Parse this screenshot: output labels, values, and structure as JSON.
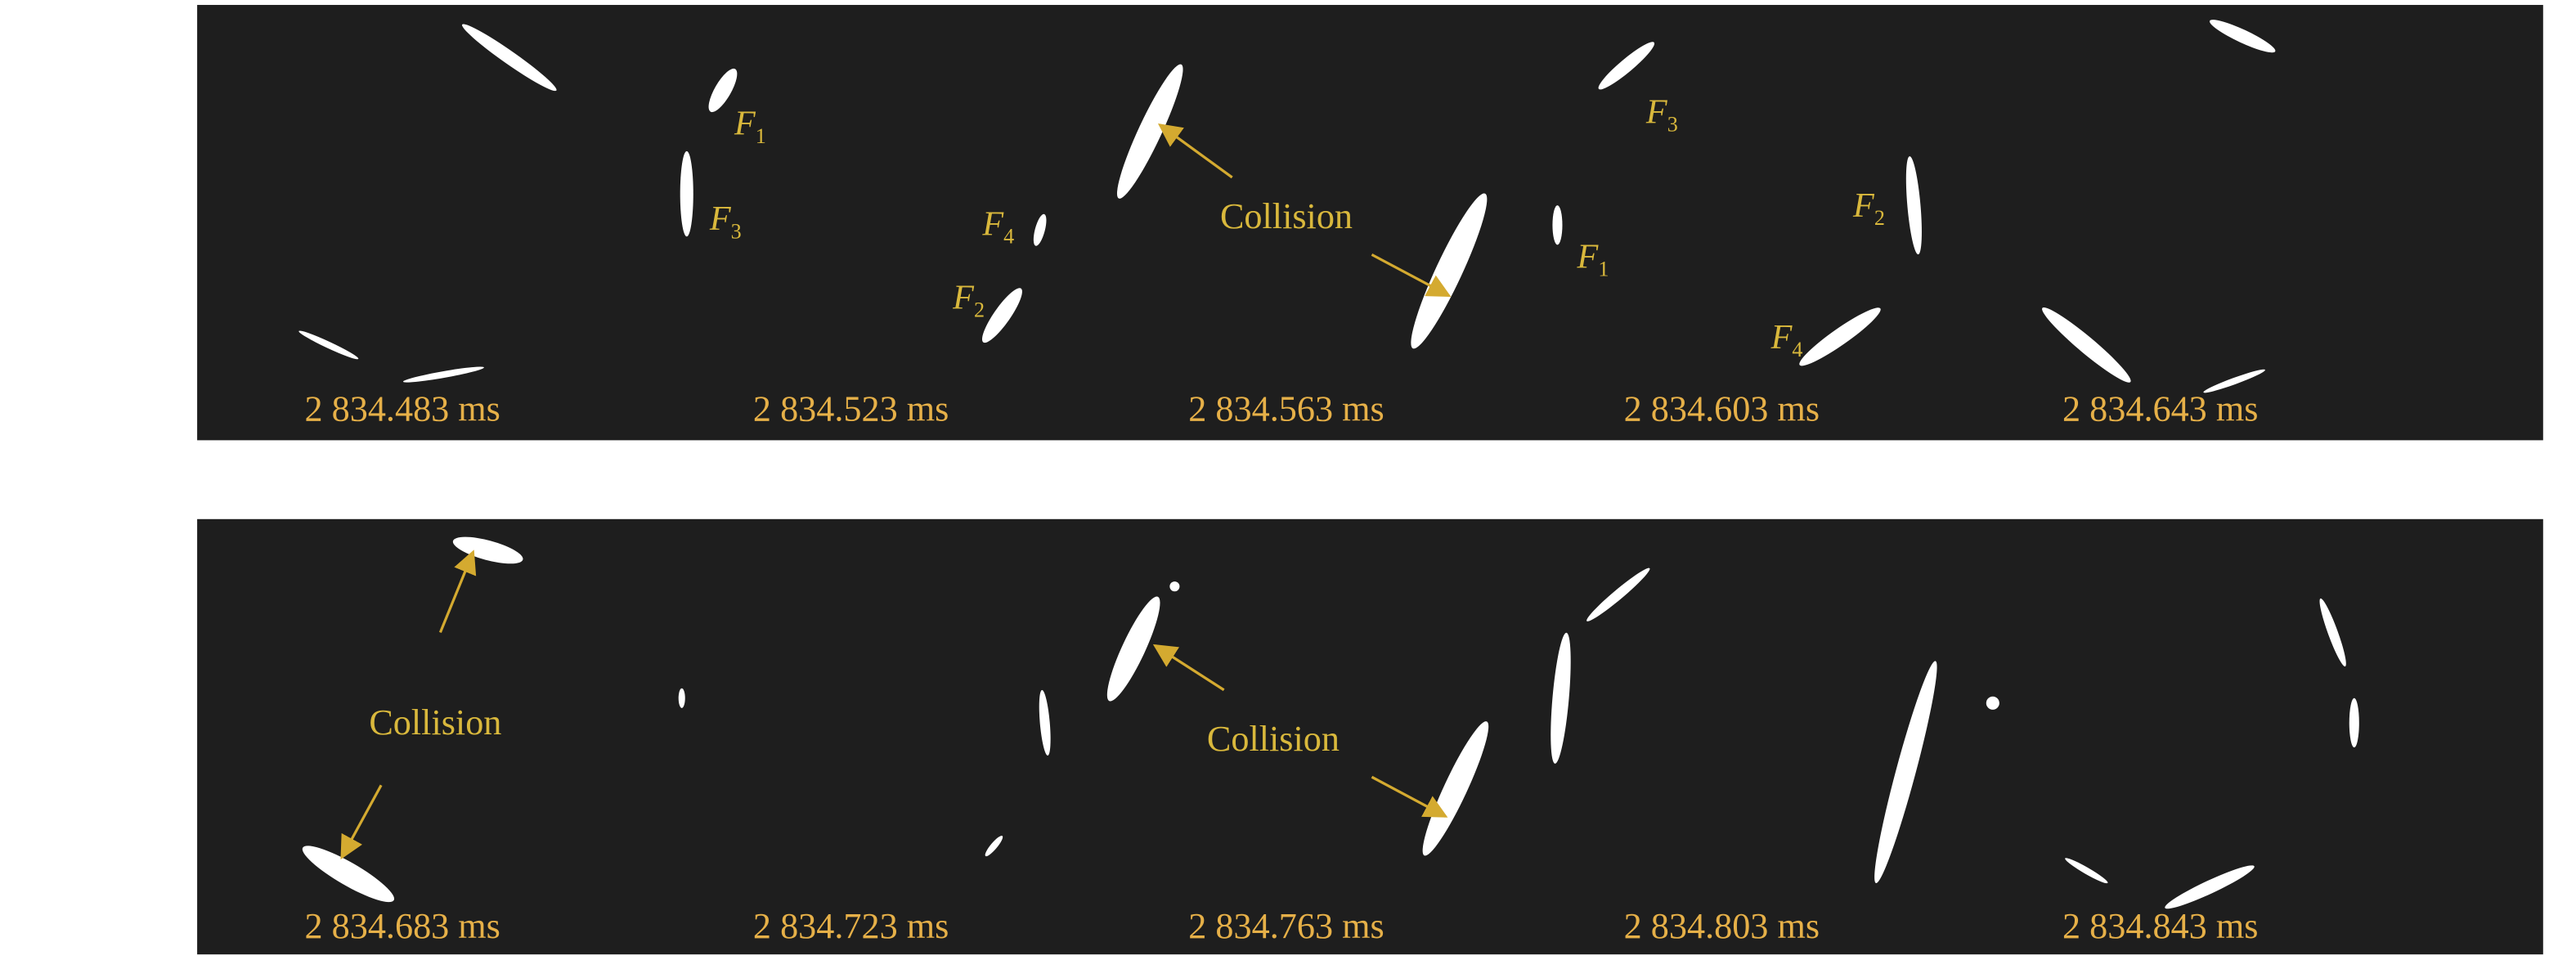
{
  "panels": [
    {
      "times": [
        "2 834.483 ms",
        "2 834.523 ms",
        "2 834.563 ms",
        "2 834.603 ms",
        "2 834.643 ms"
      ],
      "labels": [
        {
          "letter": "F",
          "sub": "1"
        },
        {
          "letter": "F",
          "sub": "3"
        },
        {
          "letter": "F",
          "sub": "4"
        },
        {
          "letter": "F",
          "sub": "2"
        },
        {
          "letter": "F",
          "sub": "3"
        },
        {
          "letter": "F",
          "sub": "2"
        },
        {
          "letter": "F",
          "sub": "1"
        },
        {
          "letter": "F",
          "sub": "4"
        }
      ],
      "collisions": [
        "Collision"
      ]
    },
    {
      "times": [
        "2 834.683 ms",
        "2 834.723 ms",
        "2 834.763 ms",
        "2 834.803 ms",
        "2 834.843 ms"
      ],
      "collisions": [
        "Collision",
        "Collision"
      ]
    }
  ]
}
